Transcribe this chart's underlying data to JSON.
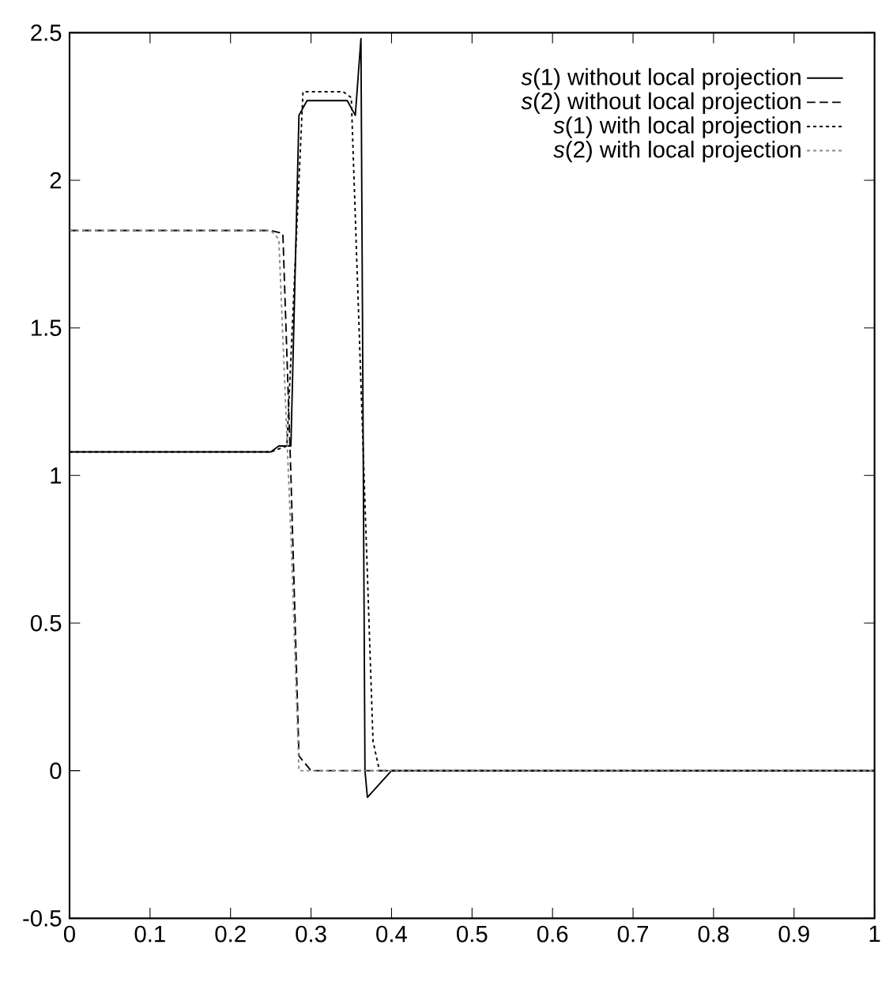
{
  "chart_data": {
    "type": "line",
    "xlim": [
      0,
      1
    ],
    "ylim": [
      -0.5,
      2.5
    ],
    "xticks": [
      0,
      0.1,
      0.2,
      0.3,
      0.4,
      0.5,
      0.6,
      0.7,
      0.8,
      0.9,
      1
    ],
    "yticks": [
      -0.5,
      0,
      0.5,
      1,
      1.5,
      2,
      2.5
    ],
    "legend": "top right",
    "grid": false,
    "series": [
      {
        "name": "*s*(1) without local projection",
        "color": "#000000",
        "line_style": "solid",
        "x": [
          0,
          0.25,
          0.26,
          0.275,
          0.285,
          0.295,
          0.345,
          0.355,
          0.362,
          0.367,
          0.37,
          0.4,
          1
        ],
        "values": [
          1.08,
          1.08,
          1.1,
          1.1,
          2.22,
          2.27,
          2.27,
          2.22,
          2.48,
          0,
          -0.09,
          0,
          0
        ]
      },
      {
        "name": "*s*(2) without local projection",
        "color": "#000000",
        "line_style": "dashed",
        "x": [
          0,
          0.25,
          0.265,
          0.275,
          0.285,
          0.3,
          1
        ],
        "values": [
          1.83,
          1.83,
          1.82,
          1.0,
          0.05,
          0,
          0
        ]
      },
      {
        "name": "*s*(1) with local projection",
        "color": "#000000",
        "line_style": "dotted",
        "x": [
          0,
          0.25,
          0.27,
          0.29,
          0.34,
          0.35,
          0.377,
          0.385,
          1
        ],
        "values": [
          1.08,
          1.08,
          1.1,
          2.3,
          2.3,
          2.28,
          0.1,
          0,
          0
        ]
      },
      {
        "name": "*s*(2) with local projection",
        "color": "#888888",
        "line_style": "dotted",
        "x": [
          0,
          0.25,
          0.26,
          0.275,
          0.285,
          1
        ],
        "values": [
          1.83,
          1.83,
          1.8,
          0.8,
          0,
          0
        ]
      }
    ]
  }
}
